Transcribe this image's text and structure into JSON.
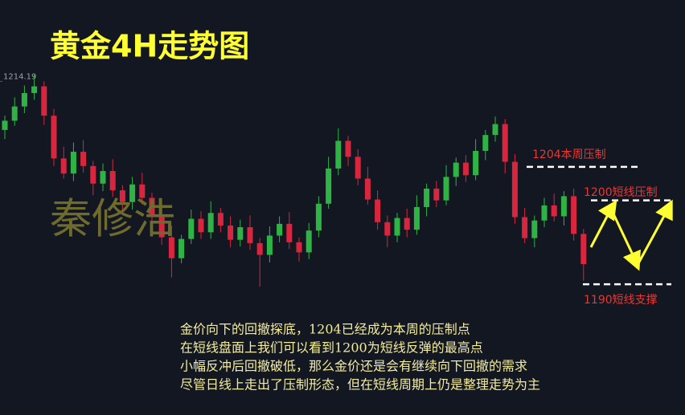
{
  "chart_data": {
    "type": "candlestick",
    "title": "黄金4H走势图",
    "watermark": "秦修浩",
    "ylim": [
      1174.4,
      1223.9
    ],
    "yticks": [
      1214.19
    ],
    "up_color": "#2fb344",
    "down_color": "#d7263d",
    "series": {
      "open": [
        1208.4,
        1209.5,
        1211.2,
        1212.8,
        1213.6,
        1210.1,
        1205.0,
        1203.2,
        1205.8,
        1204.1,
        1202.0,
        1203.5,
        1201.2,
        1199.8,
        1201.9,
        1200.3,
        1198.2,
        1195.6,
        1193.1,
        1195.4,
        1197.8,
        1196.2,
        1198.5,
        1197.0,
        1195.3,
        1196.8,
        1194.9,
        1193.5,
        1195.8,
        1197.2,
        1195.0,
        1193.8,
        1196.4,
        1199.6,
        1203.8,
        1207.1,
        1205.2,
        1202.6,
        1200.1,
        1197.4,
        1195.8,
        1197.9,
        1196.5,
        1199.2,
        1201.4,
        1200.0,
        1202.8,
        1204.5,
        1203.0,
        1205.9,
        1207.8,
        1209.1,
        1204.6,
        1198.0,
        1195.5,
        1197.6,
        1199.4,
        1198.1,
        1200.5,
        1196.0
      ],
      "high": [
        1210.1,
        1212.3,
        1213.7,
        1215.0,
        1214.2,
        1210.9,
        1206.4,
        1206.9,
        1207.2,
        1204.7,
        1204.4,
        1204.9,
        1201.8,
        1202.8,
        1203.3,
        1200.9,
        1199.1,
        1197.0,
        1195.9,
        1198.9,
        1198.7,
        1199.9,
        1199.1,
        1198.1,
        1197.7,
        1198.2,
        1195.5,
        1196.9,
        1198.1,
        1198.6,
        1195.6,
        1197.3,
        1200.5,
        1205.2,
        1208.6,
        1207.7,
        1206.1,
        1204.0,
        1201.2,
        1198.2,
        1198.5,
        1199.0,
        1200.6,
        1202.0,
        1202.3,
        1204.2,
        1205.1,
        1205.4,
        1207.3,
        1208.4,
        1210.0,
        1209.7,
        1205.5,
        1199.1,
        1198.2,
        1200.3,
        1200.8,
        1201.1,
        1201.4,
        1196.6
      ],
      "low": [
        1207.3,
        1208.9,
        1210.4,
        1212.0,
        1209.0,
        1204.1,
        1202.6,
        1202.3,
        1203.3,
        1200.6,
        1201.1,
        1200.4,
        1198.7,
        1198.9,
        1199.5,
        1197.1,
        1194.7,
        1190.8,
        1192.5,
        1194.8,
        1195.4,
        1195.4,
        1196.2,
        1194.4,
        1194.5,
        1194.1,
        1189.7,
        1192.6,
        1195.0,
        1194.2,
        1192.7,
        1193.0,
        1195.6,
        1199.0,
        1203.0,
        1204.1,
        1201.8,
        1199.5,
        1196.5,
        1194.4,
        1195.0,
        1195.6,
        1195.9,
        1198.1,
        1199.2,
        1199.4,
        1201.7,
        1202.2,
        1202.4,
        1204.8,
        1207.0,
        1203.2,
        1197.2,
        1194.9,
        1194.4,
        1196.8,
        1197.5,
        1197.0,
        1195.2,
        1190.4
      ],
      "close": [
        1209.5,
        1211.2,
        1212.8,
        1213.6,
        1210.1,
        1205.0,
        1203.2,
        1205.8,
        1204.1,
        1202.0,
        1203.5,
        1201.2,
        1199.8,
        1201.9,
        1200.3,
        1198.2,
        1195.6,
        1193.1,
        1195.4,
        1197.8,
        1196.2,
        1198.5,
        1197.0,
        1195.3,
        1196.8,
        1194.9,
        1193.5,
        1195.8,
        1197.2,
        1195.0,
        1193.8,
        1196.4,
        1199.6,
        1203.8,
        1207.1,
        1205.2,
        1202.6,
        1200.1,
        1197.4,
        1195.8,
        1197.9,
        1196.5,
        1199.2,
        1201.4,
        1200.0,
        1202.8,
        1204.5,
        1203.0,
        1205.9,
        1207.8,
        1209.1,
        1204.6,
        1198.0,
        1195.5,
        1197.6,
        1199.4,
        1198.1,
        1200.5,
        1196.0,
        1192.4
      ]
    },
    "levels": [
      {
        "value": 1204,
        "label": "1204本周压制"
      },
      {
        "value": 1200,
        "label": "1200短线压制"
      },
      {
        "value": 1190,
        "label": "1190短线支撑"
      }
    ],
    "notes": [
      "金价向下的回撤探底，1204已经成为本周的压制点",
      "在短线盘面上我们可以看到1200为短线反弹的最高点",
      "小幅反冲后回撤破低，那么金价还是会有继续向下回撤的需求",
      "尽管日线上走出了压制形态，但在短线周期上仍是整理走势为主"
    ]
  }
}
